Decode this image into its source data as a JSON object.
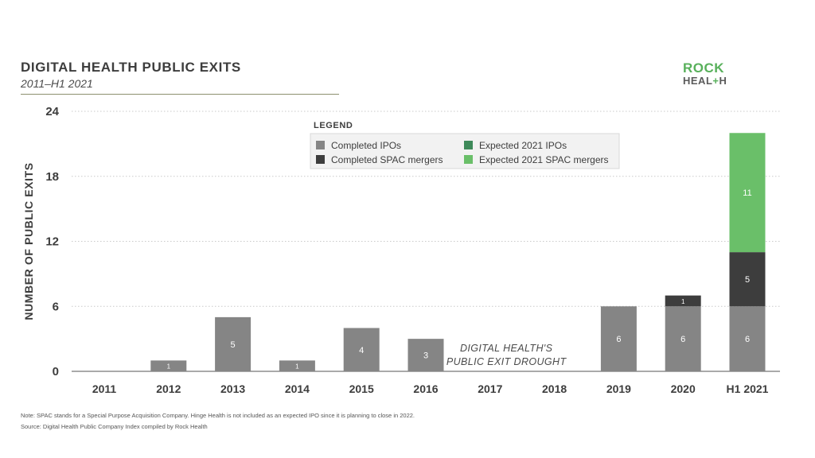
{
  "header": {
    "title": "DIGITAL HEALTH PUBLIC EXITS",
    "subtitle": "2011–H1 2021"
  },
  "logo": {
    "line1": "ROCK",
    "line2_a": "HEAL",
    "line2_plus": "+",
    "line2_b": "H"
  },
  "footer": {
    "note": "Note: SPAC stands for a Special Purpose Acquisition Company. Hinge Health is not included as an expected IPO since it is planning to close in 2022.",
    "source": "Source: Digital Health Public Company Index compiled by Rock Health"
  },
  "chart_data": {
    "type": "bar",
    "stacked": true,
    "title": "DIGITAL HEALTH PUBLIC EXITS",
    "subtitle": "2011–H1 2021",
    "xlabel": "",
    "ylabel": "NUMBER OF PUBLIC EXITS",
    "ylim": [
      0,
      24
    ],
    "yticks": [
      0,
      6,
      12,
      18,
      24
    ],
    "grid": true,
    "categories": [
      "2011",
      "2012",
      "2013",
      "2014",
      "2015",
      "2016",
      "2017",
      "2018",
      "2019",
      "2020",
      "H1 2021"
    ],
    "series": [
      {
        "name": "Completed IPOs",
        "color": "#858585",
        "values": [
          0,
          1,
          5,
          1,
          4,
          3,
          0,
          0,
          6,
          6,
          6
        ]
      },
      {
        "name": "Completed SPAC mergers",
        "color": "#3d3d3d",
        "values": [
          0,
          0,
          0,
          0,
          0,
          0,
          0,
          0,
          0,
          1,
          5
        ]
      },
      {
        "name": "Expected 2021 IPOs",
        "color": "#3e8a5a",
        "values": [
          0,
          0,
          0,
          0,
          0,
          0,
          0,
          0,
          0,
          0,
          0
        ]
      },
      {
        "name": "Expected 2021 SPAC mergers",
        "color": "#6abf69",
        "values": [
          0,
          0,
          0,
          0,
          0,
          0,
          0,
          0,
          0,
          0,
          11
        ]
      }
    ],
    "legend": {
      "title": "LEGEND",
      "placement": "top-center"
    },
    "annotations": [
      {
        "text": "DIGITAL HEALTH'S",
        "x": "2017"
      },
      {
        "text": "PUBLIC EXIT DROUGHT",
        "x": "2017"
      }
    ]
  }
}
